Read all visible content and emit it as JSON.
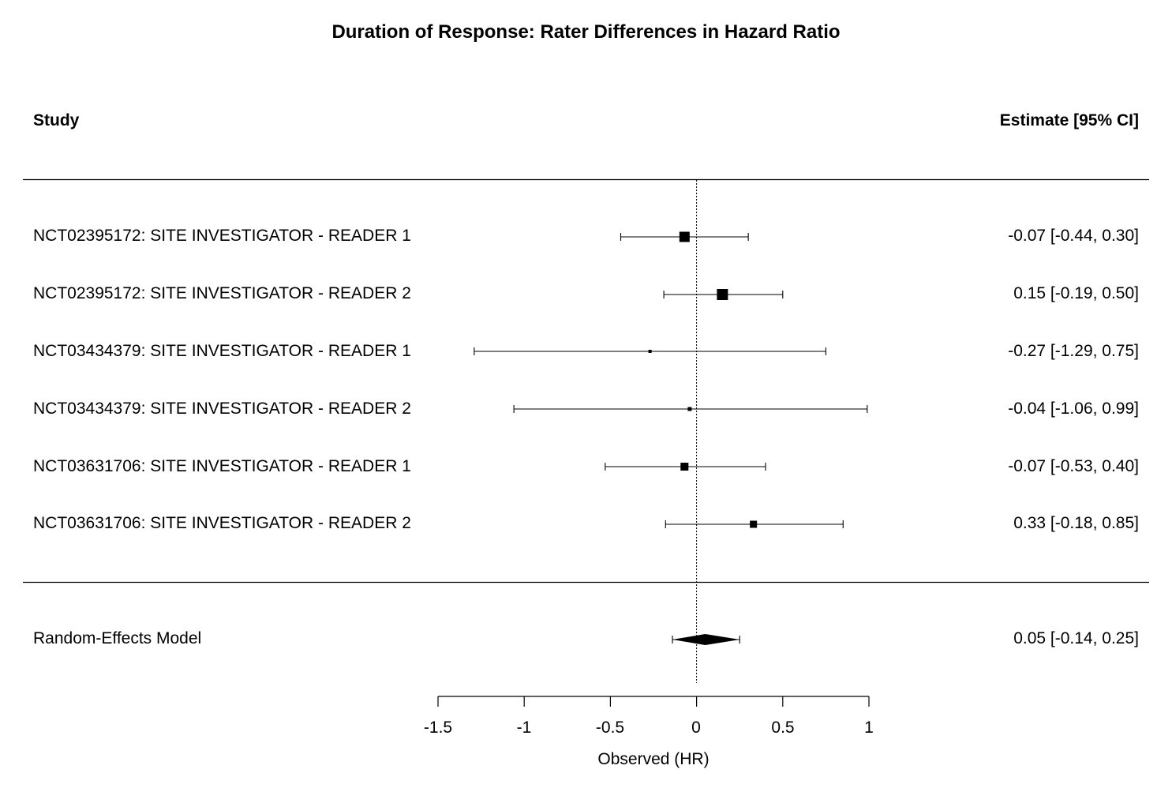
{
  "chart_data": {
    "type": "forest",
    "title": "Duration of Response: Rater Differences in Hazard Ratio",
    "column_headers": {
      "left": "Study",
      "right": "Estimate [95% CI]"
    },
    "xlabel": "Observed (HR)",
    "xlim": [
      -1.5,
      1
    ],
    "xticks": [
      "-1.5",
      "-1",
      "-0.5",
      "0",
      "0.5",
      "1"
    ],
    "xtick_values": [
      -1.5,
      -1,
      -0.5,
      0,
      0.5,
      1
    ],
    "reference_line": 0,
    "studies": [
      {
        "label": "NCT02395172: SITE INVESTIGATOR - READER 1",
        "estimate": -0.07,
        "lower": -0.44,
        "upper": 0.3,
        "estimate_text": "-0.07 [-0.44, 0.30]"
      },
      {
        "label": "NCT02395172: SITE INVESTIGATOR - READER 2",
        "estimate": 0.15,
        "lower": -0.19,
        "upper": 0.5,
        "estimate_text": "0.15 [-0.19, 0.50]"
      },
      {
        "label": "NCT03434379: SITE INVESTIGATOR - READER 1",
        "estimate": -0.27,
        "lower": -1.29,
        "upper": 0.75,
        "estimate_text": "-0.27 [-1.29, 0.75]"
      },
      {
        "label": "NCT03434379: SITE INVESTIGATOR - READER 2",
        "estimate": -0.04,
        "lower": -1.06,
        "upper": 0.99,
        "estimate_text": "-0.04 [-1.06, 0.99]"
      },
      {
        "label": "NCT03631706: SITE INVESTIGATOR - READER 1",
        "estimate": -0.07,
        "lower": -0.53,
        "upper": 0.4,
        "estimate_text": "-0.07 [-0.53, 0.40]"
      },
      {
        "label": "NCT03631706: SITE INVESTIGATOR - READER 2",
        "estimate": 0.33,
        "lower": -0.18,
        "upper": 0.85,
        "estimate_text": "0.33 [-0.18, 0.85]"
      }
    ],
    "summary": {
      "label": "Random-Effects Model",
      "estimate": 0.05,
      "lower": -0.14,
      "upper": 0.25,
      "estimate_text": "0.05 [-0.14, 0.25]"
    },
    "colors": {
      "marks": "#000000",
      "background": "#ffffff"
    }
  }
}
